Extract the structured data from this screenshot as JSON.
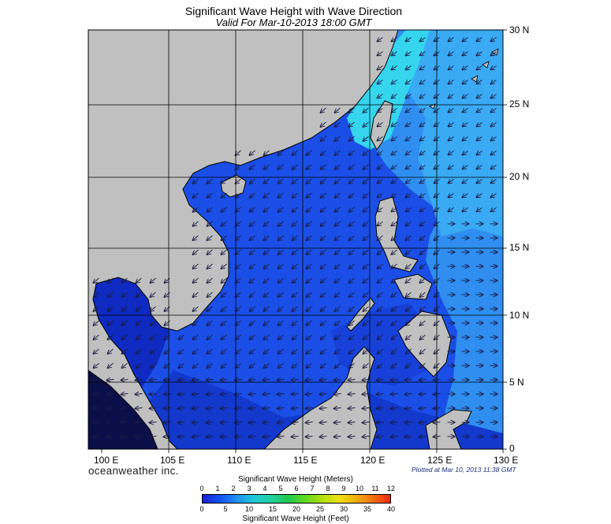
{
  "header": {
    "title": "Significant Wave Height with Wave Direction",
    "subtitle": "Valid For Mar-10-2013 18:00 GMT"
  },
  "map": {
    "region": "South China Sea / Western Pacific",
    "lon_range": [
      99,
      130
    ],
    "lat_range": [
      0,
      30
    ],
    "longitude_labels": [
      "100 E",
      "105 E",
      "110 E",
      "115 E",
      "120 E",
      "125 E",
      "130 E"
    ],
    "latitude_labels": [
      "30 N",
      "25 N",
      "20 N",
      "15 N",
      "10 N",
      "5 N",
      "0"
    ],
    "grid": true,
    "land_color": "#c0c0c0",
    "ocean_colors": {
      "low": "#0a1fb0",
      "mid": "#1e5cf2",
      "high": "#2a9cf2",
      "peak": "#2edcf0"
    },
    "arrow_color": "#1a1a40",
    "dominant_wave_direction": "from northeast toward southwest"
  },
  "footer": {
    "brand": "oceanweather inc.",
    "plotted": "Plotted at Mar 10, 2013 11:38 GMT"
  },
  "colorbar": {
    "title_meters": "Significant Wave Height (Meters)",
    "title_feet": "Significant Wave Height (Feet)",
    "meter_ticks": [
      "0",
      "1",
      "2",
      "3",
      "4",
      "5",
      "6",
      "7",
      "8",
      "9",
      "10",
      "11",
      "12"
    ],
    "feet_ticks": [
      "0",
      "5",
      "10",
      "15",
      "20",
      "25",
      "30",
      "35",
      "40"
    ],
    "colors": [
      "#1a20d6",
      "#1450f0",
      "#1e90f0",
      "#20c8d8",
      "#20d0a0",
      "#20c850",
      "#60d820",
      "#b0e010",
      "#f0e010",
      "#f0b010",
      "#f07010",
      "#f02810"
    ]
  }
}
